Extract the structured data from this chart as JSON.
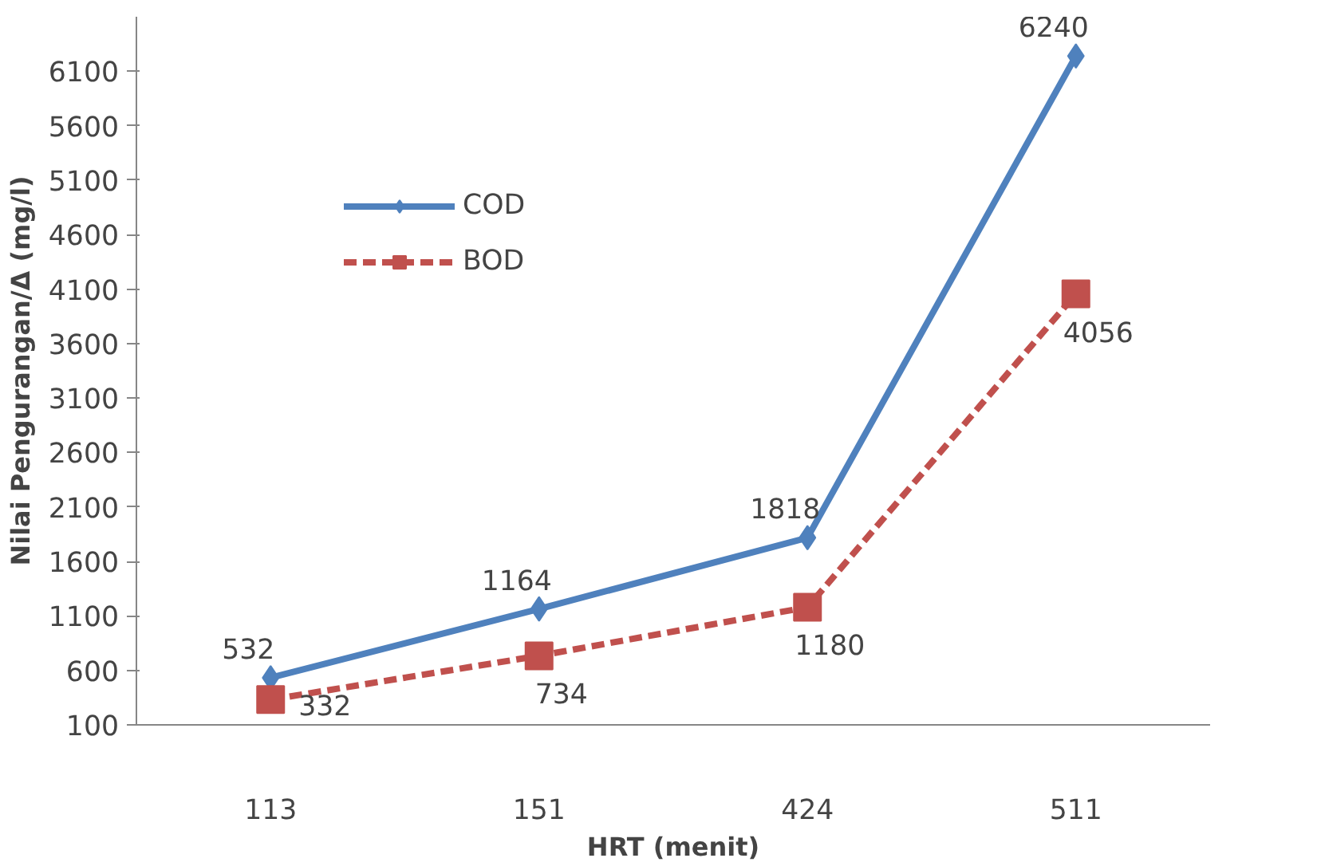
{
  "chart_data": {
    "type": "line",
    "xlabel": "HRT (menit)",
    "ylabel": "Nilai Pengurangan/Δ (mg/l)",
    "categories": [
      "113",
      "151",
      "424",
      "511"
    ],
    "ylim": [
      100,
      6600
    ],
    "yticks": [
      100,
      600,
      1100,
      1600,
      2100,
      2600,
      3100,
      3600,
      4100,
      4600,
      5100,
      5600,
      6100
    ],
    "grid": false,
    "legend": "top left",
    "data_labels": true,
    "series": [
      {
        "name": "COD",
        "color": "#4f81bd",
        "values": [
          532,
          1164,
          1818,
          6240
        ],
        "marker": "diamond",
        "line_style": "solid"
      },
      {
        "name": "BOD",
        "color": "#c0504d",
        "values": [
          332,
          734,
          1180,
          4056
        ],
        "marker": "square",
        "line_style": "dashed"
      }
    ]
  }
}
